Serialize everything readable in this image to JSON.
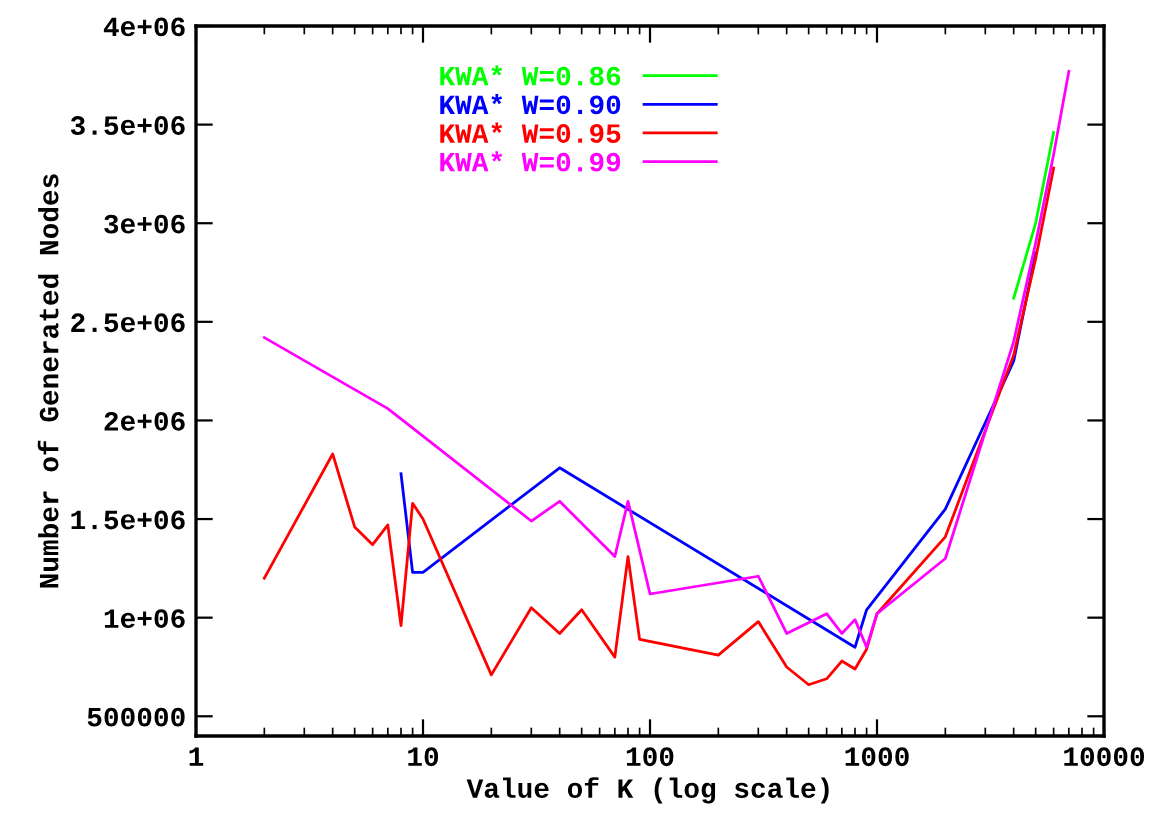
{
  "chart_data": {
    "type": "line",
    "xlabel": "Value of K (log scale)",
    "ylabel": "Number of Generated Nodes",
    "log": "x",
    "grid": false,
    "legend": "top",
    "marker": "none",
    "line_style": "solid",
    "xlim": [
      1,
      10000
    ],
    "xticks": [
      1,
      10,
      100,
      1000,
      10000
    ],
    "ylim": [
      400000,
      4000000
    ],
    "yticks": [
      {
        "value": 500000,
        "label": "500000"
      },
      {
        "value": 1000000,
        "label": "1e+06"
      },
      {
        "value": 1500000,
        "label": "1.5e+06"
      },
      {
        "value": 2000000,
        "label": "2e+06"
      },
      {
        "value": 2500000,
        "label": "2.5e+06"
      },
      {
        "value": 3000000,
        "label": "3e+06"
      },
      {
        "value": 3500000,
        "label": "3.5e+06"
      },
      {
        "value": 4000000,
        "label": "4e+06"
      }
    ],
    "series": [
      {
        "name": "KWA* W=0.86",
        "color": "#00ff00",
        "x": [
          4000,
          5000,
          6000
        ],
        "values": [
          2620000,
          3000000,
          3460000
        ]
      },
      {
        "name": "KWA* W=0.90",
        "color": "#0000ff",
        "x": [
          8,
          9,
          10,
          40,
          800,
          900,
          2000,
          4000,
          5000
        ],
        "values": [
          1730000,
          1230000,
          1230000,
          1760000,
          850000,
          1040000,
          1550000,
          2300000,
          2850000
        ]
      },
      {
        "name": "KWA* W=0.95",
        "color": "#ff0000",
        "x": [
          2,
          4,
          5,
          6,
          7,
          8,
          9,
          10,
          20,
          30,
          40,
          50,
          70,
          80,
          90,
          200,
          300,
          400,
          500,
          600,
          700,
          800,
          900,
          1000,
          2000,
          4000,
          5000,
          6000
        ],
        "values": [
          1200000,
          1830000,
          1460000,
          1370000,
          1470000,
          960000,
          1580000,
          1500000,
          710000,
          1050000,
          920000,
          1040000,
          800000,
          1310000,
          890000,
          810000,
          980000,
          750000,
          660000,
          690000,
          780000,
          740000,
          840000,
          1020000,
          1410000,
          2330000,
          2820000,
          3280000
        ]
      },
      {
        "name": "KWA* W=0.99",
        "color": "#ff00ff",
        "x": [
          2,
          7,
          30,
          40,
          70,
          80,
          100,
          300,
          400,
          600,
          700,
          800,
          900,
          1000,
          2000,
          4000,
          5000,
          6000,
          7000
        ],
        "values": [
          2420000,
          2060000,
          1490000,
          1590000,
          1310000,
          1590000,
          1120000,
          1210000,
          920000,
          1020000,
          920000,
          990000,
          850000,
          1020000,
          1300000,
          2400000,
          2900000,
          3350000,
          3770000
        ]
      }
    ]
  }
}
